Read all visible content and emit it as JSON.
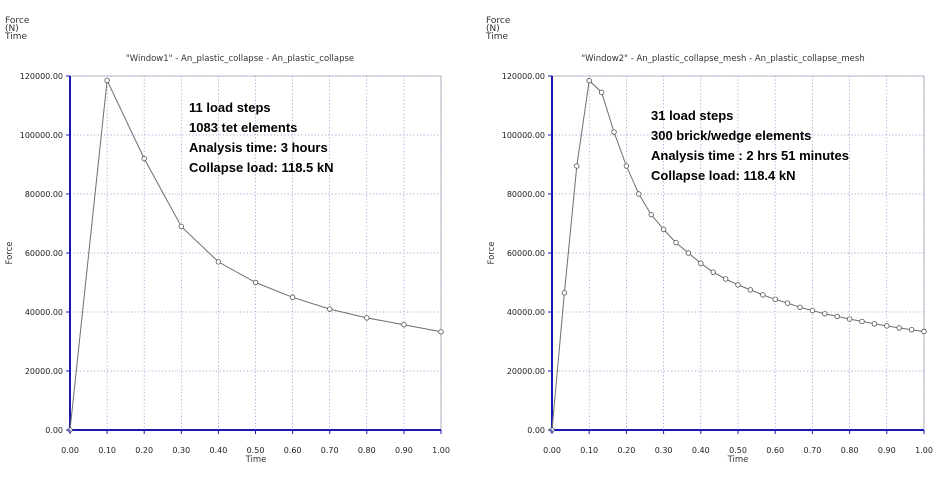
{
  "chart_data": [
    {
      "type": "line",
      "title": "\"Window1\" - An_plastic_collapse - An_plastic_collapse",
      "legend_lines": [
        "Force",
        "(N)",
        "Time"
      ],
      "xlabel": "Time",
      "ylabel": "Force",
      "xlim": [
        0,
        1
      ],
      "ylim": [
        0,
        120000
      ],
      "xticks": [
        "0.00",
        "0.10",
        "0.20",
        "0.30",
        "0.40",
        "0.50",
        "0.60",
        "0.70",
        "0.80",
        "0.90",
        "1.00"
      ],
      "yticks": [
        "0.00",
        "20000.00",
        "40000.00",
        "60000.00",
        "80000.00",
        "100000.00",
        "120000.00"
      ],
      "grid": true,
      "annotations": [
        "11 load steps",
        "1083 tet elements",
        "Analysis time: 3 hours",
        "Collapse load: 118.5 kN"
      ],
      "x": [
        0,
        0.1,
        0.2,
        0.3,
        0.4,
        0.5,
        0.6,
        0.7,
        0.8,
        0.9,
        1.0
      ],
      "y": [
        0,
        118500,
        92000,
        69000,
        57000,
        50000,
        45000,
        41000,
        38000,
        35700,
        33300
      ],
      "colors": {
        "line": "#6e6e6e",
        "axis": "#1818b0",
        "grid": "#8a8acc"
      }
    },
    {
      "type": "line",
      "title": "\"Window2\" - An_plastic_collapse_mesh - An_plastic_collapse_mesh",
      "legend_lines": [
        "Force",
        "(N)",
        "Time"
      ],
      "xlabel": "Time",
      "ylabel": "Force",
      "xlim": [
        0,
        1
      ],
      "ylim": [
        0,
        120000
      ],
      "xticks": [
        "0.00",
        "0.10",
        "0.20",
        "0.30",
        "0.40",
        "0.50",
        "0.60",
        "0.70",
        "0.80",
        "0.90",
        "1.00"
      ],
      "yticks": [
        "0.00",
        "20000.00",
        "40000.00",
        "60000.00",
        "80000.00",
        "100000.00",
        "120000.00"
      ],
      "grid": true,
      "annotations": [
        "31 load steps",
        "300 brick/wedge elements",
        "Analysis time : 2 hrs 51 minutes",
        "Collapse load: 118.4 kN"
      ],
      "x": [
        0,
        0.0333,
        0.0667,
        0.1,
        0.1333,
        0.1667,
        0.2,
        0.2333,
        0.2667,
        0.3,
        0.3333,
        0.3667,
        0.4,
        0.4333,
        0.4667,
        0.5,
        0.5333,
        0.5667,
        0.6,
        0.6333,
        0.6667,
        0.7,
        0.7333,
        0.7667,
        0.8,
        0.8333,
        0.8667,
        0.9,
        0.9333,
        0.9667,
        1.0
      ],
      "y": [
        0,
        46500,
        89500,
        118400,
        114500,
        101000,
        89500,
        80000,
        73000,
        68000,
        63500,
        60000,
        56500,
        53500,
        51200,
        49200,
        47500,
        45800,
        44300,
        43000,
        41600,
        40500,
        39400,
        38500,
        37600,
        36800,
        36000,
        35300,
        34600,
        34000,
        33400
      ],
      "colors": {
        "line": "#6e6e6e",
        "axis": "#1818b0",
        "grid": "#8a8acc"
      }
    }
  ]
}
